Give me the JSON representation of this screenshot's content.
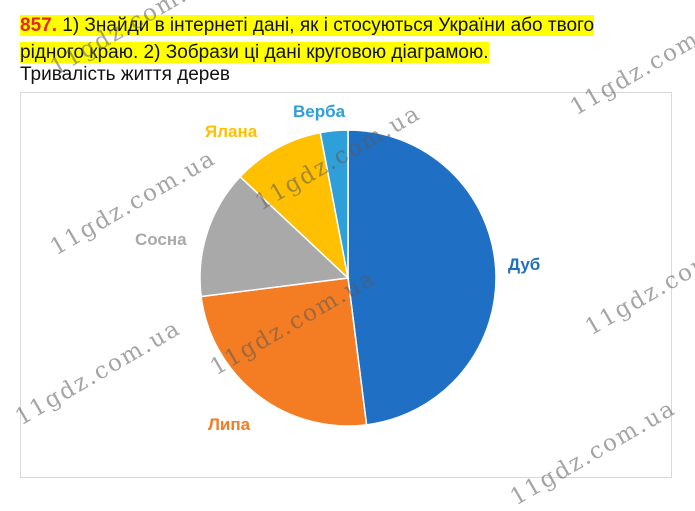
{
  "task": {
    "number": "857.",
    "text_line1": " 1) Знайди в інтернеті дані, як і стосуються України або твого",
    "text_line2": "рідного краю. 2) Зобрази ці дані круговою діаграмою."
  },
  "watermark": "11gdz.com.ua",
  "chart_data": {
    "type": "pie",
    "title": "Тривалість життя дерев",
    "slices": [
      {
        "label": "Дуб",
        "value": 48,
        "color": "#1f6fc5"
      },
      {
        "label": "Липа",
        "value": 25,
        "color": "#f47c22"
      },
      {
        "label": "Сосна",
        "value": 14,
        "color": "#a9a9a9"
      },
      {
        "label": "Ялана",
        "value": 10,
        "color": "#fec000"
      },
      {
        "label": "Верба",
        "value": 3,
        "color": "#2e9fd8"
      }
    ],
    "legend": "none"
  }
}
